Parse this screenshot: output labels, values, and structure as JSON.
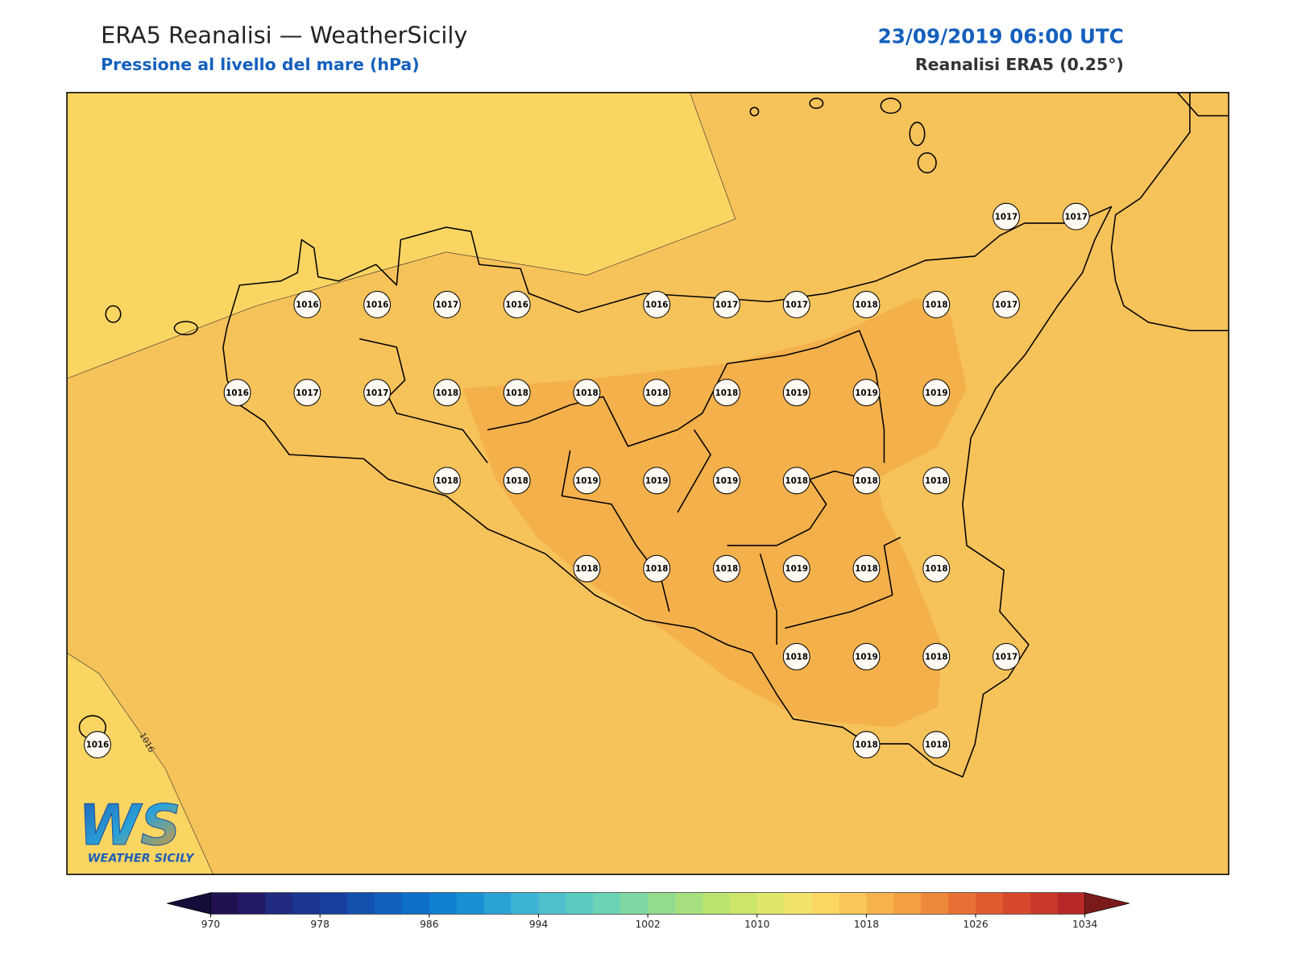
{
  "header": {
    "title": "ERA5 Reanalisi — WeatherSicily",
    "subtitle": "Pressione al livello del mare (hPa)",
    "datetime": "23/09/2019 06:00 UTC",
    "source": "Reanalisi ERA5 (0.25°)"
  },
  "map": {
    "contour_label": "1016",
    "grid": [
      [
        null,
        null,
        null,
        null,
        null,
        null,
        null,
        null,
        null,
        null,
        null,
        null,
        null,
        "1017",
        "1017"
      ],
      [
        null,
        null,
        null,
        "1016",
        "1016",
        "1017",
        "1016",
        null,
        "1016",
        "1017",
        "1017",
        "1018",
        "1018",
        "1017",
        null
      ],
      [
        null,
        null,
        "1016",
        "1017",
        "1017",
        "1018",
        "1018",
        "1018",
        "1018",
        "1018",
        "1019",
        "1019",
        "1019",
        null,
        null
      ],
      [
        null,
        null,
        null,
        null,
        null,
        "1018",
        "1018",
        "1019",
        "1019",
        "1019",
        "1018",
        "1018",
        "1018",
        null,
        null
      ],
      [
        null,
        null,
        null,
        null,
        null,
        null,
        null,
        "1018",
        "1018",
        "1018",
        "1019",
        "1018",
        "1018",
        null,
        null
      ],
      [
        null,
        null,
        null,
        null,
        null,
        null,
        null,
        null,
        null,
        null,
        "1018",
        "1019",
        "1018",
        "1017",
        null
      ],
      [
        "1016",
        null,
        null,
        null,
        null,
        null,
        null,
        null,
        null,
        null,
        null,
        "1018",
        "1018",
        null,
        null
      ]
    ]
  },
  "colorbar": {
    "lim": [
      970,
      1034
    ],
    "ticks": [
      970,
      978,
      986,
      994,
      1002,
      1010,
      1018,
      1026,
      1034
    ],
    "under_color": "#150c3a",
    "over_color": "#7a1a1a",
    "colors": [
      "#221150",
      "#231a66",
      "#1f2a80",
      "#1a3590",
      "#17409e",
      "#1450ad",
      "#1060bc",
      "#0c70c8",
      "#0f80cf",
      "#1a90d4",
      "#2aa2d6",
      "#3db4d4",
      "#4ec0cc",
      "#5ccbc2",
      "#6cd3b4",
      "#7fd8a2",
      "#92dc90",
      "#a6e07e",
      "#b9e46f",
      "#cde66a",
      "#dfe66a",
      "#f2e46a",
      "#fbd762",
      "#fac85a",
      "#f6b34c",
      "#f39f42",
      "#ee883a",
      "#e87034",
      "#e05c30",
      "#d6492c",
      "#c93a2a",
      "#b82828"
    ]
  },
  "logo": {
    "mark": "WS",
    "text": "WEATHER SICILY"
  }
}
